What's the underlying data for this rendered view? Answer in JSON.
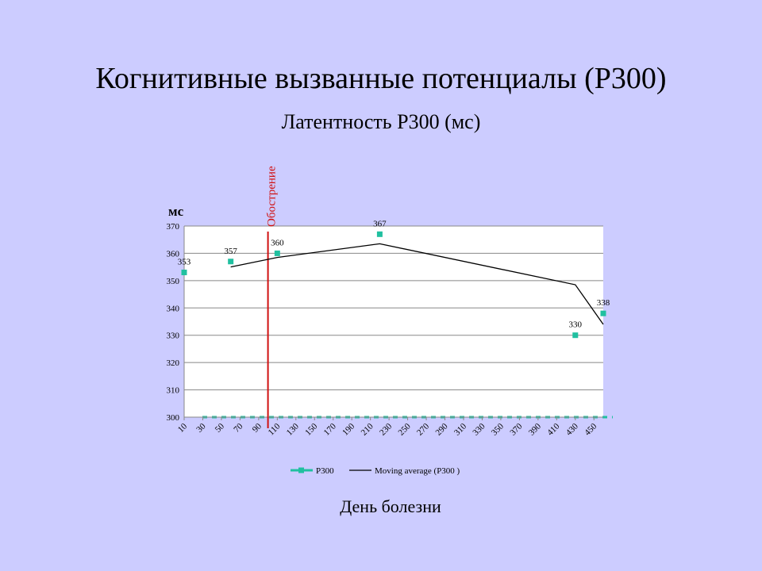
{
  "chart_data": {
    "type": "line",
    "title": "Когнитивные вызванные потенциалы (P300)",
    "subtitle": "Латентность P300 (мс)",
    "y_label": "мс",
    "x_label": "День болезни",
    "x": [
      10,
      60,
      110,
      220,
      430,
      460
    ],
    "series": [
      {
        "name": "P300",
        "color": "#20c0a0",
        "values": [
          353,
          357,
          360,
          367,
          330,
          338
        ],
        "marker": "square",
        "data_labels": true
      },
      {
        "name": "Moving average (P300 )",
        "color": "#000000",
        "values": [
          null,
          355,
          358.5,
          363.5,
          348.5,
          334
        ],
        "marker": "none"
      }
    ],
    "xlim": [
      10,
      460
    ],
    "xticks": [
      10,
      30,
      50,
      70,
      90,
      110,
      130,
      150,
      170,
      190,
      210,
      230,
      250,
      270,
      290,
      310,
      330,
      350,
      370,
      390,
      410,
      430,
      450
    ],
    "ylim": [
      300,
      370
    ],
    "yticks": [
      300,
      310,
      320,
      330,
      340,
      350,
      360,
      370
    ],
    "grid": true,
    "legend": "bottom",
    "annotations": [
      {
        "x": 100,
        "text": "Обострение",
        "color": "#d01010"
      }
    ]
  }
}
